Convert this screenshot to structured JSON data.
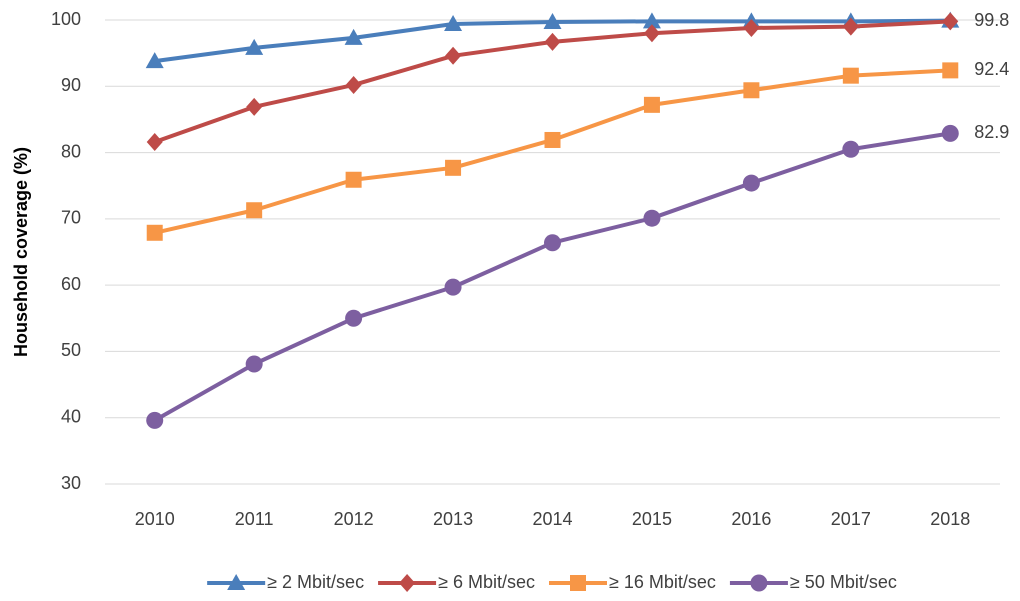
{
  "chart_data": {
    "type": "line",
    "y_label": "Household coverage (%)",
    "categories": [
      "2010",
      "2011",
      "2012",
      "2013",
      "2014",
      "2015",
      "2016",
      "2017",
      "2018"
    ],
    "series": [
      {
        "name": "≥ 2 Mbit/sec",
        "color": "#4a7ebb",
        "marker": "triangle",
        "values": [
          93.8,
          95.8,
          97.3,
          99.4,
          99.7,
          99.8,
          99.8,
          99.8,
          99.9
        ]
      },
      {
        "name": "≥ 6 Mbit/sec",
        "color": "#be4b48",
        "marker": "diamond",
        "values": [
          81.6,
          86.9,
          90.2,
          94.6,
          96.7,
          98.0,
          98.8,
          99.0,
          99.8
        ],
        "labeled_points": [
          8
        ]
      },
      {
        "name": "≥ 16 Mbit/sec",
        "color": "#f79646",
        "marker": "square",
        "values": [
          67.9,
          71.3,
          75.9,
          77.7,
          81.9,
          87.2,
          89.4,
          91.6,
          92.4
        ],
        "labeled_points": [
          8
        ]
      },
      {
        "name": "≥ 50 Mbit/sec",
        "color": "#7d5fa0",
        "marker": "circle",
        "values": [
          39.6,
          48.1,
          55.0,
          59.7,
          66.4,
          70.1,
          75.4,
          80.5,
          82.9
        ],
        "labeled_points": [
          8
        ]
      }
    ],
    "ylim": [
      30,
      100
    ],
    "yticks": [
      30,
      40,
      50,
      60,
      70,
      80,
      90,
      100
    ],
    "grid": true,
    "legend": "bottom"
  }
}
